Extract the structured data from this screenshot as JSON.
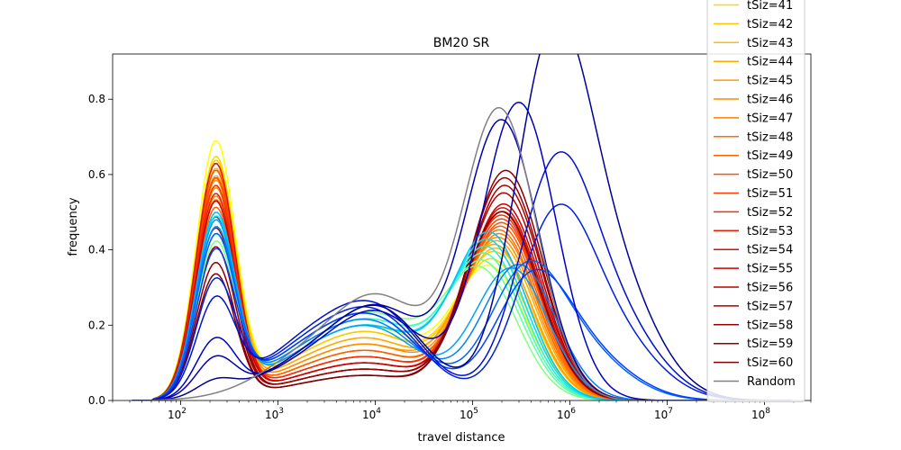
{
  "chart_data": {
    "type": "line",
    "title": "BM20 SR",
    "xlabel": "travel distance",
    "ylabel": "frequency",
    "xscale": "log",
    "xlim": [
      20,
      300000000
    ],
    "ylim": [
      0,
      0.92
    ],
    "grid": false,
    "legend_position": "top-right",
    "x_ticks": [
      100,
      1000,
      10000,
      100000,
      1000000,
      10000000,
      100000000
    ],
    "x_tick_labels": [
      {
        "base": "10",
        "exp": "2"
      },
      {
        "base": "10",
        "exp": "3"
      },
      {
        "base": "10",
        "exp": "4"
      },
      {
        "base": "10",
        "exp": "5"
      },
      {
        "base": "10",
        "exp": "6"
      },
      {
        "base": "10",
        "exp": "7"
      },
      {
        "base": "10",
        "exp": "8"
      }
    ],
    "y_ticks": [
      0.0,
      0.2,
      0.4,
      0.6,
      0.8
    ],
    "y_tick_labels": [
      "0.0",
      "0.2",
      "0.4",
      "0.6",
      "0.8"
    ],
    "legend": [
      {
        "label": "tSiz=41",
        "color": "#ffd700"
      },
      {
        "label": "tSiz=42",
        "color": "#ffc800"
      },
      {
        "label": "tSiz=43",
        "color": "#ffbb00"
      },
      {
        "label": "tSiz=44",
        "color": "#ffaa00"
      },
      {
        "label": "tSiz=45",
        "color": "#ff9c00"
      },
      {
        "label": "tSiz=46",
        "color": "#ff8c00"
      },
      {
        "label": "tSiz=47",
        "color": "#ff7e00"
      },
      {
        "label": "tSiz=48",
        "color": "#ff6e00"
      },
      {
        "label": "tSiz=49",
        "color": "#ff6000"
      },
      {
        "label": "tSiz=50",
        "color": "#ff5000"
      },
      {
        "label": "tSiz=51",
        "color": "#ff4000"
      },
      {
        "label": "tSiz=52",
        "color": "#f53000"
      },
      {
        "label": "tSiz=53",
        "color": "#e82000"
      },
      {
        "label": "tSiz=54",
        "color": "#d81000"
      },
      {
        "label": "tSiz=55",
        "color": "#c80000"
      },
      {
        "label": "tSiz=56",
        "color": "#b80000"
      },
      {
        "label": "tSiz=57",
        "color": "#a80000"
      },
      {
        "label": "tSiz=58",
        "color": "#980000"
      },
      {
        "label": "tSiz=59",
        "color": "#8c0000"
      },
      {
        "label": "tSiz=60",
        "color": "#800000"
      },
      {
        "label": "Random",
        "color": "#808080"
      }
    ],
    "series": [
      {
        "color": "#ffff00",
        "peak1": 0.67,
        "mid": 0.12,
        "peak2": 0.35,
        "peak2_x": 150000
      },
      {
        "color": "#ffd700",
        "peak1": 0.63,
        "mid": 0.11,
        "peak2": 0.37,
        "peak2_x": 160000
      },
      {
        "color": "#ffc800",
        "peak1": 0.62,
        "mid": 0.11,
        "peak2": 0.39,
        "peak2_x": 170000
      },
      {
        "color": "#ffbb00",
        "peak1": 0.6,
        "mid": 0.1,
        "peak2": 0.4,
        "peak2_x": 175000
      },
      {
        "color": "#ffaa00",
        "peak1": 0.58,
        "mid": 0.1,
        "peak2": 0.42,
        "peak2_x": 180000
      },
      {
        "color": "#ff9c00",
        "peak1": 0.57,
        "mid": 0.09,
        "peak2": 0.41,
        "peak2_x": 170000
      },
      {
        "color": "#ff8c00",
        "peak1": 0.55,
        "mid": 0.09,
        "peak2": 0.43,
        "peak2_x": 185000
      },
      {
        "color": "#ff7e00",
        "peak1": 0.53,
        "mid": 0.08,
        "peak2": 0.44,
        "peak2_x": 190000
      },
      {
        "color": "#ff6e00",
        "peak1": 0.52,
        "mid": 0.08,
        "peak2": 0.45,
        "peak2_x": 190000
      },
      {
        "color": "#ff6000",
        "peak1": 0.5,
        "mid": 0.08,
        "peak2": 0.46,
        "peak2_x": 195000
      },
      {
        "color": "#ff5000",
        "peak1": 0.6,
        "mid": 0.07,
        "peak2": 0.47,
        "peak2_x": 200000
      },
      {
        "color": "#ff4000",
        "peak1": 0.58,
        "mid": 0.07,
        "peak2": 0.48,
        "peak2_x": 200000
      },
      {
        "color": "#f53000",
        "peak1": 0.56,
        "mid": 0.07,
        "peak2": 0.49,
        "peak2_x": 200000
      },
      {
        "color": "#e82000",
        "peak1": 0.54,
        "mid": 0.06,
        "peak2": 0.5,
        "peak2_x": 205000
      },
      {
        "color": "#d81000",
        "peak1": 0.62,
        "mid": 0.06,
        "peak2": 0.51,
        "peak2_x": 205000
      },
      {
        "color": "#c80000",
        "peak1": 0.52,
        "mid": 0.06,
        "peak2": 0.52,
        "peak2_x": 210000
      },
      {
        "color": "#b80000",
        "peak1": 0.48,
        "mid": 0.05,
        "peak2": 0.55,
        "peak2_x": 210000
      },
      {
        "color": "#a80000",
        "peak1": 0.45,
        "mid": 0.05,
        "peak2": 0.57,
        "peak2_x": 215000
      },
      {
        "color": "#980000",
        "peak1": 0.4,
        "mid": 0.05,
        "peak2": 0.59,
        "peak2_x": 215000
      },
      {
        "color": "#8c0000",
        "peak1": 0.36,
        "mid": 0.04,
        "peak2": 0.61,
        "peak2_x": 220000
      },
      {
        "color": "#800000",
        "peak1": 0.33,
        "mid": 0.04,
        "peak2": 0.5,
        "peak2_x": 200000
      },
      {
        "color": "#80ff80",
        "peak1": 0.4,
        "mid": 0.14,
        "peak2": 0.34,
        "peak2_x": 120000
      },
      {
        "color": "#60ffa0",
        "peak1": 0.42,
        "mid": 0.13,
        "peak2": 0.36,
        "peak2_x": 130000
      },
      {
        "color": "#40ffc0",
        "peak1": 0.44,
        "mid": 0.13,
        "peak2": 0.38,
        "peak2_x": 135000
      },
      {
        "color": "#20f0e0",
        "peak1": 0.46,
        "mid": 0.12,
        "peak2": 0.4,
        "peak2_x": 140000
      },
      {
        "color": "#00e0ff",
        "peak1": 0.47,
        "mid": 0.12,
        "peak2": 0.42,
        "peak2_x": 145000
      },
      {
        "color": "#00c0ff",
        "peak1": 0.48,
        "mid": 0.12,
        "peak2": 0.44,
        "peak2_x": 150000
      },
      {
        "color": "#00a0ff",
        "peak1": 0.46,
        "mid": 0.12,
        "peak2": 0.35,
        "peak2_x": 250000
      },
      {
        "color": "#0080ff",
        "peak1": 0.44,
        "mid": 0.13,
        "peak2": 0.36,
        "peak2_x": 300000
      },
      {
        "color": "#0060ff",
        "peak1": 0.42,
        "mid": 0.14,
        "peak2": 0.32,
        "peak2_x": 350000
      },
      {
        "color": "#0040ff",
        "peak1": 0.38,
        "mid": 0.14,
        "peak2": 0.3,
        "peak2_x": 400000
      },
      {
        "color": "#0020e0",
        "peak1": 0.3,
        "mid": 0.15,
        "peak2": 0.45,
        "peak2_x": 700000
      },
      {
        "color": "#0010d0",
        "peak1": 0.25,
        "mid": 0.16,
        "peak2": 0.57,
        "peak2_x": 700000
      },
      {
        "color": "#0000c0",
        "peak1": 0.15,
        "mid": 0.17,
        "peak2": 0.79,
        "peak2_x": 300000
      },
      {
        "color": "#0000b0",
        "peak1": 0.1,
        "mid": 0.18,
        "peak2": 0.74,
        "peak2_x": 200000
      },
      {
        "color": "#000090",
        "peak1": 0.04,
        "mid": 0.18,
        "peak2": 0.88,
        "peak2_x": 650000
      },
      {
        "color": "#808080",
        "peak1": 0.0,
        "mid": 0.2,
        "peak2": 0.77,
        "peak2_x": 190000
      }
    ]
  }
}
